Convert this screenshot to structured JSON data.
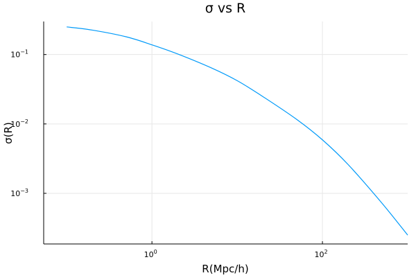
{
  "chart_data": {
    "type": "line",
    "title": "σ vs R",
    "xlabel": "R(Mpc/h)",
    "ylabel": "σ(R)",
    "xscale": "log",
    "yscale": "log",
    "xlim": [
      0.0537,
      1000
    ],
    "ylim": [
      0.0001864,
      0.2994
    ],
    "grid": true,
    "legend": "none",
    "x_ticks": [
      {
        "base": "10",
        "exp": "0",
        "value": 1
      },
      {
        "base": "10",
        "exp": "2",
        "value": 100
      }
    ],
    "y_ticks": [
      {
        "base": "10",
        "exp": "−3",
        "value": 0.001
      },
      {
        "base": "10",
        "exp": "−2",
        "value": 0.01
      },
      {
        "base": "10",
        "exp": "−1",
        "value": 0.1
      }
    ],
    "series": [
      {
        "color": "#009af9",
        "x": [
          0.1,
          0.2,
          0.5,
          1,
          2,
          5,
          10,
          20,
          50,
          100,
          200,
          500,
          1000
        ],
        "y": [
          0.25,
          0.225,
          0.18,
          0.138,
          0.102,
          0.064,
          0.042,
          0.0248,
          0.0116,
          0.0059,
          0.0026,
          0.00072,
          0.00025
        ]
      }
    ]
  }
}
